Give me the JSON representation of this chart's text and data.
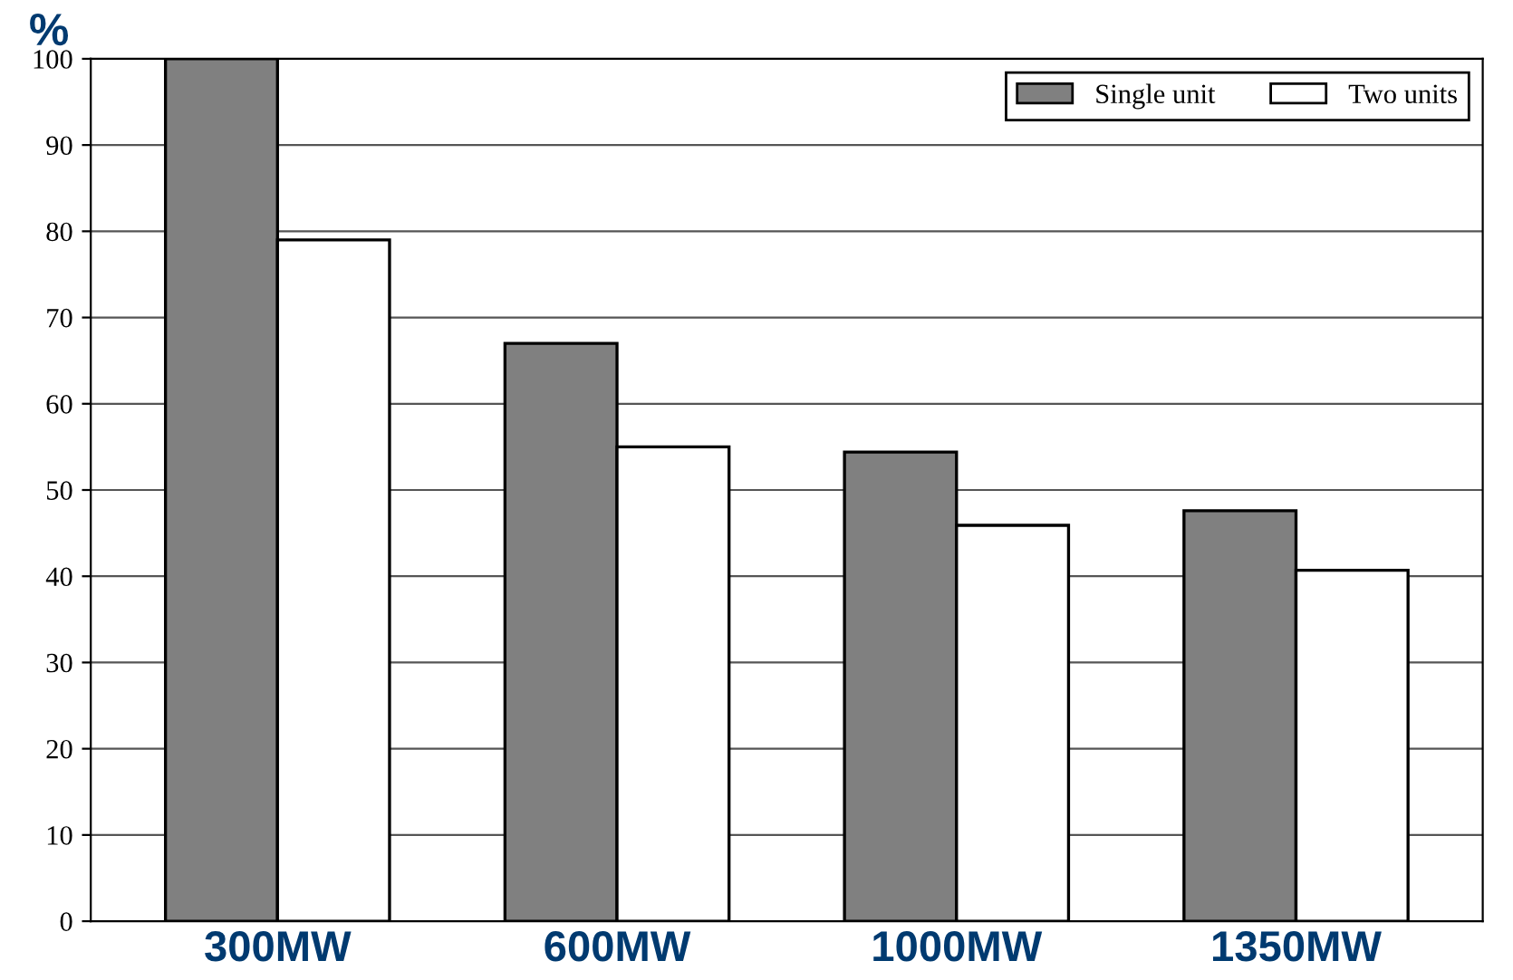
{
  "chart_data": {
    "type": "bar",
    "ylabel": "%",
    "categories": [
      "300MW",
      "600MW",
      "1000MW",
      "1350MW"
    ],
    "series": [
      {
        "name": "Single unit",
        "color": "#808080",
        "values": [
          100,
          67,
          54.4,
          47.6
        ]
      },
      {
        "name": "Two units",
        "color": "#ffffff",
        "values": [
          79,
          55,
          45.9,
          40.7
        ]
      }
    ],
    "ylim": [
      0,
      100
    ],
    "yticks": [
      0,
      10,
      20,
      30,
      40,
      50,
      60,
      70,
      80,
      90,
      100
    ],
    "grid": "y",
    "legend": "top right"
  }
}
